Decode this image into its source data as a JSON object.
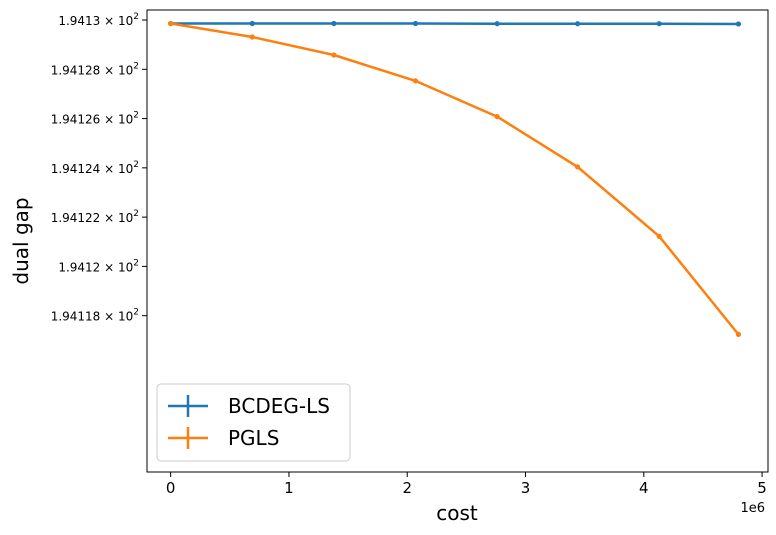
{
  "chart_data": {
    "type": "line",
    "xlabel": "cost",
    "ylabel": "dual gap",
    "x_offset_label": "1e6",
    "xlim": [
      -200000,
      5050000
    ],
    "ylim": [
      194.111655,
      194.130407
    ],
    "x_ticks": [
      {
        "value": 0,
        "label": "0"
      },
      {
        "value": 1000000,
        "label": "1"
      },
      {
        "value": 2000000,
        "label": "2"
      },
      {
        "value": 3000000,
        "label": "3"
      },
      {
        "value": 4000000,
        "label": "4"
      },
      {
        "value": 5000000,
        "label": "5"
      }
    ],
    "y_ticks": [
      {
        "value": 194.118,
        "mantissa": "1.94118",
        "exp_base": "10",
        "exp": "2"
      },
      {
        "value": 194.12,
        "mantissa": "1.9412",
        "exp_base": "10",
        "exp": "2"
      },
      {
        "value": 194.122,
        "mantissa": "1.94122",
        "exp_base": "10",
        "exp": "2"
      },
      {
        "value": 194.124,
        "mantissa": "1.94124",
        "exp_base": "10",
        "exp": "2"
      },
      {
        "value": 194.126,
        "mantissa": "1.94126",
        "exp_base": "10",
        "exp": "2"
      },
      {
        "value": 194.128,
        "mantissa": "1.94128",
        "exp_base": "10",
        "exp": "2"
      },
      {
        "value": 194.13,
        "mantissa": "1.9413",
        "exp_base": "10",
        "exp": "2"
      }
    ],
    "times_sign": "×",
    "legend_position": "lower left",
    "series": [
      {
        "name": "BCDEG-LS",
        "color": "#1f77b4",
        "x": [
          0,
          690000,
          1380000,
          2070000,
          2760000,
          3440000,
          4130000,
          4800000
        ],
        "y": [
          194.12986,
          194.12986,
          194.12986,
          194.12986,
          194.12985,
          194.12985,
          194.12985,
          194.12984
        ]
      },
      {
        "name": "PGLS",
        "color": "#ff7f0e",
        "x": [
          0,
          690000,
          1380000,
          2070000,
          2760000,
          3440000,
          4130000,
          4800000
        ],
        "y": [
          194.12986,
          194.12931,
          194.12858,
          194.12753,
          194.12608,
          194.12404,
          194.12122,
          194.11724
        ]
      }
    ]
  }
}
